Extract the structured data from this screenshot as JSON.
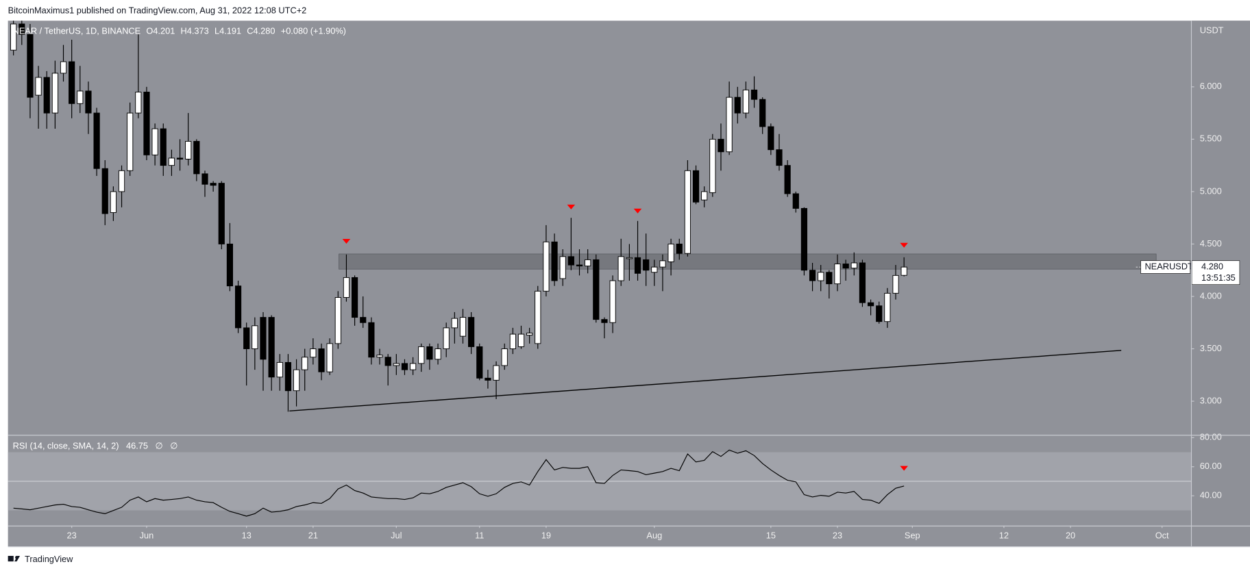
{
  "header": {
    "publisher": "BitcoinMaximus1 published on TradingView.com, Aug 31, 2022 12:08 UTC+2"
  },
  "legend": {
    "symbol": "NEAR / TetherUS, 1D, BINANCE",
    "o_label": "O",
    "open": "4.201",
    "h_label": "H",
    "high": "4.373",
    "l_label": "L",
    "low": "4.191",
    "c_label": "C",
    "close": "4.280",
    "change": "+0.080 (+1.90%)"
  },
  "price_tag": {
    "symbol": "NEARUSDT",
    "price": "4.280",
    "countdown": "13:51:35"
  },
  "footer": {
    "brand": "TradingView"
  },
  "chart_data": [
    {
      "type": "candlestick",
      "y_axis_label": "USDT",
      "up_color": "#ffffff",
      "down_color": "#000000",
      "x": [
        -7,
        -6,
        -5,
        -4,
        -3,
        -2,
        -1,
        0,
        1,
        2,
        3,
        4,
        5,
        6,
        7,
        8,
        9,
        10,
        11,
        12,
        13,
        14,
        15,
        16,
        17,
        18,
        19,
        20,
        21,
        22,
        23,
        24,
        25,
        26,
        27,
        28,
        29,
        30,
        31,
        32,
        33,
        34,
        35,
        36,
        37,
        38,
        39,
        40,
        41,
        42,
        43,
        44,
        45,
        46,
        47,
        48,
        49,
        50,
        51,
        52,
        53,
        54,
        55,
        56,
        57,
        58,
        59,
        60,
        61,
        62,
        63,
        64,
        65,
        66,
        67,
        68,
        69,
        70,
        71,
        72,
        73,
        74,
        75,
        76,
        77,
        78,
        79,
        80,
        81,
        82,
        83,
        84,
        85,
        86,
        87,
        88,
        89,
        90,
        91,
        92,
        93,
        94,
        95,
        96,
        97,
        98,
        99,
        100
      ],
      "open": [
        6.35,
        6.6,
        6.5,
        5.92,
        6.09,
        5.75,
        6.13,
        6.24,
        5.84,
        5.96,
        5.75,
        5.22,
        4.8,
        5.0,
        5.2,
        5.75,
        5.95,
        5.35,
        5.6,
        5.25,
        5.32,
        5.31,
        5.48,
        5.17,
        5.08,
        5.08,
        4.5,
        4.1,
        3.7,
        3.5,
        3.8,
        3.8,
        3.23,
        3.37,
        3.1,
        3.3,
        3.42,
        3.5,
        3.28,
        3.55,
        3.99,
        4.18,
        3.8,
        3.75,
        3.42,
        3.42,
        3.34,
        3.36,
        3.3,
        3.36,
        3.52,
        3.4,
        3.5,
        3.7,
        3.62,
        3.8,
        3.52,
        3.22,
        3.2,
        3.34,
        3.5,
        3.52,
        3.63,
        3.55,
        4.05,
        4.52,
        4.17,
        4.38,
        4.3,
        4.29,
        4.35,
        3.78,
        3.75,
        4.15,
        4.36,
        4.37,
        4.35,
        4.23,
        4.28,
        4.33,
        4.5,
        4.41,
        5.2,
        4.92,
        4.99,
        5.5,
        5.38,
        5.9,
        5.75,
        5.97,
        5.88,
        5.62,
        5.4,
        5.25,
        4.98,
        4.84,
        4.25,
        4.15,
        4.23,
        4.12,
        4.31,
        4.27,
        4.32,
        3.94,
        3.91,
        3.76,
        4.03,
        4.201
      ],
      "high": [
        6.7,
        6.7,
        6.6,
        6.2,
        6.15,
        6.25,
        6.4,
        6.45,
        6.2,
        6.05,
        5.8,
        5.3,
        5.05,
        5.25,
        5.85,
        6.5,
        6.0,
        5.65,
        5.65,
        5.4,
        5.5,
        5.75,
        5.5,
        5.2,
        5.1,
        5.1,
        4.7,
        4.15,
        3.75,
        3.8,
        3.85,
        3.82,
        3.45,
        3.45,
        3.4,
        3.5,
        3.6,
        3.55,
        3.6,
        4.05,
        4.4,
        4.2,
        4.0,
        3.8,
        3.5,
        3.45,
        3.45,
        3.4,
        3.42,
        3.55,
        3.55,
        3.55,
        3.75,
        3.85,
        3.88,
        3.85,
        3.55,
        3.3,
        3.38,
        3.55,
        3.7,
        3.72,
        3.7,
        4.1,
        4.68,
        4.6,
        4.45,
        4.75,
        4.45,
        4.45,
        4.4,
        3.8,
        4.2,
        4.55,
        4.5,
        4.72,
        4.6,
        4.35,
        4.4,
        4.55,
        4.55,
        5.3,
        5.25,
        5.05,
        5.55,
        5.65,
        6.05,
        6.0,
        6.05,
        6.1,
        5.9,
        5.65,
        5.55,
        5.3,
        5.0,
        4.85,
        4.32,
        4.3,
        4.25,
        4.4,
        4.35,
        4.42,
        4.35,
        3.97,
        3.95,
        4.08,
        4.3,
        4.373
      ],
      "low": [
        6.3,
        6.4,
        5.7,
        5.6,
        5.6,
        5.6,
        6.05,
        5.7,
        5.75,
        5.55,
        5.15,
        4.68,
        4.72,
        4.85,
        5.15,
        5.7,
        5.3,
        5.25,
        5.15,
        5.15,
        5.2,
        5.25,
        5.1,
        4.95,
        5.0,
        4.45,
        4.05,
        3.65,
        3.15,
        3.3,
        3.1,
        3.1,
        3.1,
        2.9,
        2.95,
        3.1,
        3.35,
        3.2,
        3.25,
        3.5,
        3.95,
        3.72,
        3.7,
        3.35,
        3.35,
        3.15,
        3.25,
        3.25,
        3.25,
        3.28,
        3.3,
        3.35,
        3.42,
        3.55,
        3.55,
        3.45,
        3.2,
        3.12,
        3.02,
        3.3,
        3.45,
        3.5,
        3.55,
        3.5,
        4.0,
        4.1,
        4.1,
        4.25,
        4.2,
        4.22,
        3.75,
        3.6,
        3.65,
        4.1,
        4.15,
        4.15,
        4.1,
        4.1,
        4.05,
        4.2,
        4.35,
        4.38,
        4.88,
        4.85,
        4.95,
        5.2,
        5.35,
        5.65,
        5.7,
        5.8,
        5.55,
        5.35,
        5.2,
        4.95,
        4.8,
        4.2,
        4.05,
        4.05,
        3.98,
        4.05,
        4.15,
        4.2,
        3.9,
        3.82,
        3.74,
        3.7,
        3.97,
        4.191
      ],
      "close": [
        6.6,
        6.5,
        5.9,
        6.09,
        5.75,
        6.13,
        6.24,
        5.84,
        5.96,
        5.75,
        5.22,
        4.79,
        5.0,
        5.2,
        5.75,
        5.95,
        5.35,
        5.6,
        5.25,
        5.32,
        5.31,
        5.48,
        5.17,
        5.07,
        5.06,
        4.5,
        4.1,
        3.7,
        3.5,
        3.72,
        3.4,
        3.23,
        3.37,
        3.1,
        3.3,
        3.42,
        3.5,
        3.28,
        3.55,
        3.99,
        4.18,
        3.8,
        3.75,
        3.42,
        3.44,
        3.34,
        3.36,
        3.3,
        3.36,
        3.52,
        3.4,
        3.5,
        3.7,
        3.79,
        3.8,
        3.52,
        3.22,
        3.2,
        3.34,
        3.5,
        3.64,
        3.64,
        3.65,
        4.05,
        4.52,
        4.15,
        4.38,
        4.3,
        4.29,
        4.35,
        3.78,
        3.75,
        4.15,
        4.38,
        4.37,
        4.22,
        4.25,
        4.28,
        4.34,
        4.5,
        4.41,
        5.2,
        4.9,
        5.0,
        5.5,
        5.38,
        5.9,
        5.75,
        5.97,
        5.88,
        5.62,
        5.4,
        5.25,
        4.98,
        4.84,
        4.25,
        4.15,
        4.23,
        4.12,
        4.31,
        4.27,
        4.32,
        3.94,
        3.91,
        3.76,
        4.03,
        4.2,
        4.28
      ],
      "xlim": [
        -7.66,
        134.48
      ],
      "ylim": [
        2.679,
        6.631
      ],
      "xticks": [
        {
          "value": 0,
          "label": "23"
        },
        {
          "value": 9,
          "label": "Jun"
        },
        {
          "value": 21,
          "label": "13"
        },
        {
          "value": 29,
          "label": "21"
        },
        {
          "value": 39,
          "label": "Jul"
        },
        {
          "value": 49,
          "label": "11"
        },
        {
          "value": 57,
          "label": "19"
        },
        {
          "value": 70,
          "label": "Aug"
        },
        {
          "value": 84,
          "label": "15"
        },
        {
          "value": 92,
          "label": "23"
        },
        {
          "value": 101,
          "label": "Sep"
        },
        {
          "value": 112,
          "label": "12"
        },
        {
          "value": 120,
          "label": "20"
        },
        {
          "value": 131,
          "label": "Oct"
        }
      ],
      "yticks": [
        {
          "value": 3,
          "label": "3.000"
        },
        {
          "value": 3.5,
          "label": "3.500"
        },
        {
          "value": 4,
          "label": "4.000"
        },
        {
          "value": 4.5,
          "label": "4.500"
        },
        {
          "value": 5,
          "label": "5.000"
        },
        {
          "value": 5.5,
          "label": "5.500"
        },
        {
          "value": 6,
          "label": "6.000"
        }
      ],
      "zone": {
        "xlim": [
          32.1,
          130.3
        ],
        "ylim": [
          4.26,
          4.405
        ],
        "color": "#6d6f76"
      },
      "trendline": {
        "x": [
          26.15,
          126.1
        ],
        "y": [
          2.907,
          3.485
        ],
        "color": "#000000"
      },
      "markers": {
        "x": [
          33,
          60,
          68,
          100
        ],
        "y": [
          4.526,
          4.853,
          4.815,
          4.488
        ],
        "color": "#ff0000"
      }
    },
    {
      "type": "line",
      "title": "RSI (14, close, SMA, 14, 2)",
      "last_value_label": "46.75",
      "na_labels": [
        "∅",
        "∅"
      ],
      "color": "#000000",
      "x": [
        -7,
        -6,
        -5,
        -4,
        -3,
        -2,
        -1,
        0,
        1,
        2,
        3,
        4,
        5,
        6,
        7,
        8,
        9,
        10,
        11,
        12,
        13,
        14,
        15,
        16,
        17,
        18,
        19,
        20,
        21,
        22,
        23,
        24,
        25,
        26,
        27,
        28,
        29,
        30,
        31,
        32,
        33,
        34,
        35,
        36,
        37,
        38,
        39,
        40,
        41,
        42,
        43,
        44,
        45,
        46,
        47,
        48,
        49,
        50,
        51,
        52,
        53,
        54,
        55,
        56,
        57,
        58,
        59,
        60,
        61,
        62,
        63,
        64,
        65,
        66,
        67,
        68,
        69,
        70,
        71,
        72,
        73,
        74,
        75,
        76,
        77,
        78,
        79,
        80,
        81,
        82,
        83,
        84,
        85,
        86,
        87,
        88,
        89,
        90,
        91,
        92,
        93,
        94,
        95,
        96,
        97,
        98,
        99,
        100
      ],
      "values": [
        31.5,
        31,
        30.4,
        31.5,
        32.6,
        33.7,
        34.2,
        32.6,
        32.1,
        30.4,
        28.8,
        27.7,
        29.9,
        32.1,
        37,
        39.2,
        35.9,
        38.1,
        37,
        37.5,
        38.1,
        39.2,
        37,
        35.9,
        35.3,
        32.1,
        29.3,
        27.7,
        26,
        27.7,
        31.5,
        28.8,
        29.3,
        30.4,
        32.6,
        33.7,
        35.3,
        34.8,
        38.1,
        44.7,
        47.4,
        43.6,
        41.9,
        39.2,
        38.6,
        38.1,
        38.1,
        37.5,
        38.6,
        41.9,
        41.4,
        43,
        45.8,
        47.4,
        49,
        46.3,
        41.4,
        39.7,
        41.4,
        45.8,
        48.5,
        49.6,
        47.4,
        56.7,
        64.9,
        57.8,
        59.5,
        58.9,
        58.9,
        60,
        49,
        48.5,
        54,
        57.8,
        57.3,
        56.7,
        54.5,
        55.6,
        56.7,
        58.9,
        57.3,
        68.8,
        63.3,
        64.4,
        70.4,
        67.1,
        71.5,
        69.3,
        71,
        67.7,
        62.2,
        57.8,
        54,
        50.7,
        49.6,
        40.8,
        39.2,
        40.3,
        39.7,
        42.5,
        41.9,
        43,
        37.5,
        37,
        34.8,
        40.8,
        45.2,
        46.75
      ],
      "xlim": [
        -7.66,
        134.48
      ],
      "ylim": [
        19.5,
        81.4
      ],
      "yticks": [
        {
          "value": 40,
          "label": "40.00"
        },
        {
          "value": 60,
          "label": "60.00"
        },
        {
          "value": 80,
          "label": "80.00"
        }
      ],
      "band": [
        30,
        70
      ],
      "midline": 50,
      "markers": {
        "x": [
          100
        ],
        "y": [
          58.9
        ],
        "color": "#ff0000"
      }
    }
  ]
}
